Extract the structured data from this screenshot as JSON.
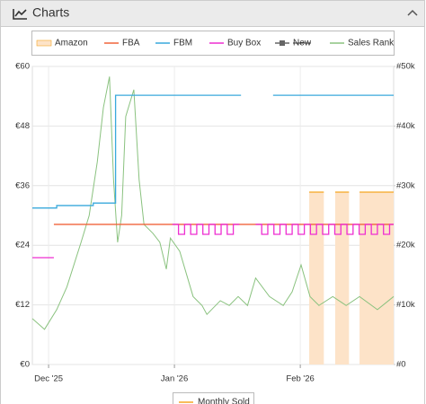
{
  "panel": {
    "title": "Charts"
  },
  "chart_data": {
    "type": "line",
    "xlim": [
      0,
      89
    ],
    "xticks": [
      {
        "value": 4,
        "label": "Dec '25"
      },
      {
        "value": 35,
        "label": "Jan '26"
      },
      {
        "value": 66,
        "label": "Feb '26"
      }
    ],
    "ylim": [
      0,
      60
    ],
    "yticks": [
      {
        "value": 0,
        "label": "€0"
      },
      {
        "value": 12,
        "label": "€12"
      },
      {
        "value": 24,
        "label": "€24"
      },
      {
        "value": 36,
        "label": "€36"
      },
      {
        "value": 48,
        "label": "€48"
      },
      {
        "value": 60,
        "label": "€60"
      }
    ],
    "y2lim": [
      0,
      50000
    ],
    "y2ticks": [
      {
        "value": 0,
        "label": "#0"
      },
      {
        "value": 10000,
        "label": "#10k"
      },
      {
        "value": 20000,
        "label": "#20k"
      },
      {
        "value": 30000,
        "label": "#30k"
      },
      {
        "value": 40000,
        "label": "#40k"
      },
      {
        "value": 50000,
        "label": "#50k"
      }
    ],
    "grid": true,
    "legend": "top",
    "series": [
      {
        "name": "Amazon",
        "color": "#f5a623",
        "fill": "#fde3c8",
        "area": true,
        "x": [
          68.2,
          71.8,
          73,
          74.6,
          78,
          79,
          80.6,
          89
        ],
        "values": [
          34.7,
          34.7,
          null,
          34.7,
          34.7,
          null,
          34.7,
          34.7
        ]
      },
      {
        "name": "FBA",
        "color": "#f0643a",
        "x": [
          5.3,
          89
        ],
        "values": [
          28.2,
          28.2
        ]
      },
      {
        "name": "FBM",
        "color": "#39a9dc",
        "x": [
          0,
          6,
          6,
          15,
          15,
          20.5,
          20.5,
          51.4,
          55,
          59.3,
          89
        ],
        "values": [
          31.5,
          31.5,
          32,
          32,
          32.5,
          32.5,
          54.2,
          54.2,
          null,
          54.2,
          54.2
        ]
      },
      {
        "name": "Buy Box",
        "color": "#ee2ed1",
        "x": [
          0,
          5.3,
          20,
          34.5,
          36,
          36,
          37.5,
          37.5,
          39,
          39,
          40.5,
          40.5,
          42,
          42,
          43.5,
          43.5,
          45,
          45,
          46.5,
          46.5,
          48,
          48,
          49.5,
          49.5,
          51,
          53,
          55,
          56.5,
          56.5,
          58,
          58,
          59.5,
          59.5,
          61,
          61,
          62.5,
          62.5,
          64,
          64,
          65.5,
          65.5,
          67,
          67,
          68.5,
          68.5,
          70,
          70,
          71.5,
          71.5,
          73,
          73,
          74.5,
          74.5,
          76,
          76,
          77.5,
          77.5,
          79,
          79,
          80.5,
          80.5,
          82,
          82,
          83.5,
          83.5,
          85,
          85,
          86.5,
          86.5,
          88,
          88,
          89
        ],
        "values": [
          21.5,
          21.5,
          null,
          28.2,
          28.2,
          26.2,
          26.2,
          28.2,
          28.2,
          26.2,
          26.2,
          28.2,
          28.2,
          26.2,
          26.2,
          28.2,
          28.2,
          26.2,
          26.2,
          28.2,
          28.2,
          26.2,
          26.2,
          28.2,
          28.2,
          null,
          28.2,
          28.2,
          26.2,
          26.2,
          28.2,
          28.2,
          26.2,
          26.2,
          28.2,
          28.2,
          26.2,
          26.2,
          28.2,
          28.2,
          26.2,
          26.2,
          28.2,
          28.2,
          26.2,
          26.2,
          28.2,
          28.2,
          26.2,
          26.2,
          28.2,
          28.2,
          26.2,
          26.2,
          28.2,
          28.2,
          26.2,
          26.2,
          28.2,
          28.2,
          26.2,
          26.2,
          28.2,
          28.2,
          26.2,
          26.2,
          28.2,
          28.2,
          26.2,
          26.2,
          28.2,
          28.2
        ]
      },
      {
        "name": "New",
        "color": "#666666",
        "hidden": true,
        "x": [],
        "values": []
      },
      {
        "name": "Sales Rank",
        "color": "#8ac27f",
        "axis": "y2",
        "x": [
          0,
          3,
          6,
          8.5,
          12,
          14,
          16,
          17.5,
          19,
          20,
          21,
          22,
          23,
          25,
          26.3,
          27.5,
          29.7,
          31.4,
          33,
          34,
          36.3,
          39.6,
          41.8,
          43,
          46.3,
          48.5,
          50.7,
          53,
          55,
          58.4,
          61.8,
          64,
          66.2,
          68.4,
          70.6,
          74,
          77.3,
          80.6,
          85,
          89
        ],
        "values": [
          7700,
          5900,
          9200,
          13000,
          20500,
          25000,
          34000,
          43100,
          48300,
          31000,
          20500,
          25000,
          41600,
          46100,
          31000,
          23500,
          22000,
          20500,
          16000,
          21200,
          19000,
          11400,
          9900,
          8400,
          10700,
          9900,
          11400,
          9900,
          14500,
          11400,
          9900,
          12200,
          16700,
          11400,
          9900,
          11400,
          9900,
          11400,
          9200,
          11400
        ]
      }
    ],
    "legend2": {
      "name": "Monthly Sold",
      "color": "#f5a623"
    }
  }
}
